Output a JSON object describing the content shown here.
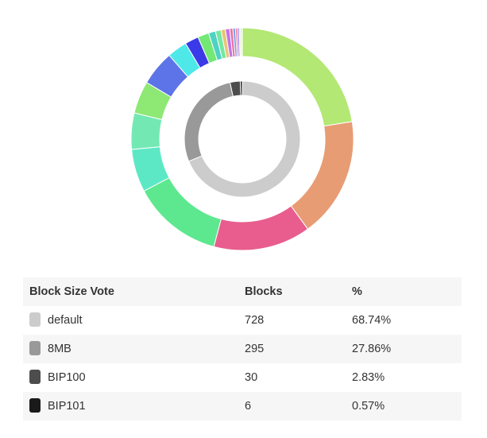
{
  "table": {
    "headers": [
      "Block Size Vote",
      "Blocks",
      "%"
    ],
    "rows": [
      {
        "label": "default",
        "blocks": "728",
        "percent": "68.74%",
        "color": "#cccccc"
      },
      {
        "label": "8MB",
        "blocks": "295",
        "percent": "27.86%",
        "color": "#999999"
      },
      {
        "label": "BIP100",
        "blocks": "30",
        "percent": "2.83%",
        "color": "#4d4d4d"
      },
      {
        "label": "BIP101",
        "blocks": "6",
        "percent": "0.57%",
        "color": "#1a1a1a"
      }
    ]
  },
  "chart_data": {
    "type": "pie",
    "inner_ring": {
      "categories": [
        "default",
        "8MB",
        "BIP100",
        "BIP101"
      ],
      "values": [
        728,
        295,
        30,
        6
      ],
      "colors": [
        "#cccccc",
        "#999999",
        "#4d4d4d",
        "#1a1a1a"
      ]
    },
    "outer_ring": {
      "values": [
        24.8,
        19.3,
        15.6,
        14.5,
        6.9,
        5.8,
        5.2,
        5.6,
        3.2,
        2.2,
        1.8,
        1.1,
        0.9,
        0.7,
        0.7,
        0.5,
        0.4,
        0.3,
        0.3,
        0.2,
        0.2,
        0.1
      ],
      "colors": [
        "#b3e874",
        "#e89c74",
        "#e85d8e",
        "#5de88f",
        "#5de8c5",
        "#74e8b3",
        "#8ee874",
        "#5d74e8",
        "#4fe8e8",
        "#3a3ae8",
        "#74e874",
        "#4fd1c5",
        "#74e8a0",
        "#e8c574",
        "#c574e8",
        "#e874a0",
        "#74a0e8",
        "#e8748e",
        "#a074e8",
        "#e8e874",
        "#74c5e8",
        "#c5c5c5"
      ]
    }
  }
}
